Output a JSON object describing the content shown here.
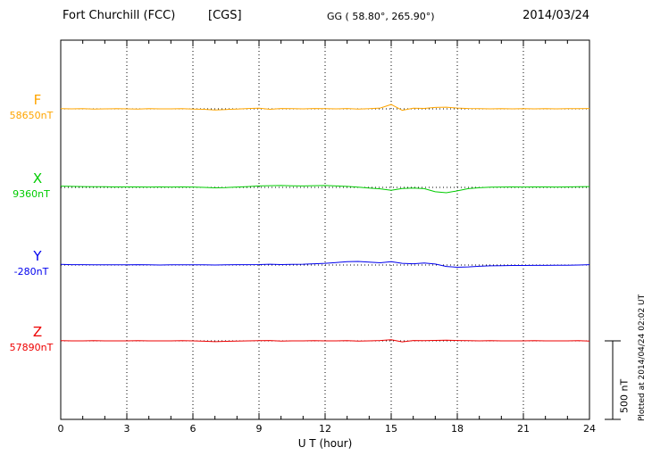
{
  "header": {
    "station": "Fort Churchill (FCC)",
    "system": "[CGS]",
    "geographic": "GG ( 58.80°, 265.90°)",
    "date": "2014/03/24"
  },
  "axis": {
    "xlabel": "U T (hour)"
  },
  "scale_bar": {
    "label": "500 nT"
  },
  "plotted_at": "Plotted at 2014/04/24 02:02 UT",
  "chart_data": {
    "type": "line",
    "title": "Fort Churchill (FCC) [CGS] magnetogram, 2014/03/24",
    "xlabel": "U T (hour)",
    "xlim": [
      0,
      24
    ],
    "x_ticks": [
      0,
      3,
      6,
      9,
      12,
      15,
      18,
      21,
      24
    ],
    "sample_interval_hours": 0.5,
    "scale_nT": 500,
    "units": "nT deviation from each component baseline",
    "grid": "dotted vertical lines every 3 hours, dotted horizontal baseline per component",
    "series": [
      {
        "name": "F",
        "baseline_label": "58650nT",
        "baseline_nT": 58650,
        "color": "#FFA500",
        "values": [
          1,
          0,
          1,
          -1,
          0,
          1,
          0,
          -1,
          1,
          0,
          0,
          1,
          -1,
          -3,
          -7,
          -4,
          -1,
          2,
          4,
          -3,
          2,
          1,
          0,
          2,
          1,
          0,
          2,
          -1,
          1,
          5,
          28,
          -9,
          4,
          3,
          9,
          11,
          5,
          2,
          1,
          0,
          1,
          0,
          1,
          0,
          1,
          0,
          1,
          1,
          2
        ]
      },
      {
        "name": "X",
        "baseline_label": "9360nT",
        "baseline_nT": 9360,
        "color": "#00CC00",
        "values": [
          8,
          6,
          5,
          4,
          4,
          3,
          3,
          3,
          2,
          3,
          2,
          3,
          2,
          0,
          -3,
          -1,
          2,
          5,
          9,
          11,
          12,
          10,
          9,
          11,
          12,
          9,
          6,
          1,
          -4,
          -9,
          -18,
          -7,
          -4,
          -8,
          -28,
          -34,
          -22,
          -8,
          -2,
          1,
          2,
          3,
          2,
          3,
          3,
          2,
          3,
          4,
          5
        ]
      },
      {
        "name": "Y",
        "baseline_label": "-280nT",
        "baseline_nT": -280,
        "color": "#0000EE",
        "values": [
          4,
          2,
          2,
          1,
          1,
          1,
          1,
          2,
          1,
          0,
          1,
          1,
          1,
          1,
          0,
          1,
          2,
          2,
          3,
          5,
          3,
          4,
          5,
          8,
          11,
          16,
          21,
          23,
          18,
          14,
          21,
          11,
          8,
          13,
          6,
          -9,
          -14,
          -12,
          -8,
          -5,
          -4,
          -3,
          -3,
          -2,
          -2,
          -1,
          -1,
          0,
          2
        ]
      },
      {
        "name": "Z",
        "baseline_label": "57890nT",
        "baseline_nT": 57890,
        "color": "#EE0000",
        "values": [
          1,
          0,
          0,
          1,
          0,
          0,
          0,
          1,
          0,
          0,
          0,
          1,
          0,
          -2,
          -5,
          -3,
          -1,
          0,
          1,
          2,
          -1,
          0,
          0,
          1,
          0,
          0,
          1,
          -1,
          0,
          2,
          7,
          -6,
          2,
          1,
          3,
          4,
          2,
          1,
          0,
          1,
          0,
          0,
          0,
          1,
          0,
          0,
          0,
          1,
          -1
        ]
      }
    ]
  }
}
